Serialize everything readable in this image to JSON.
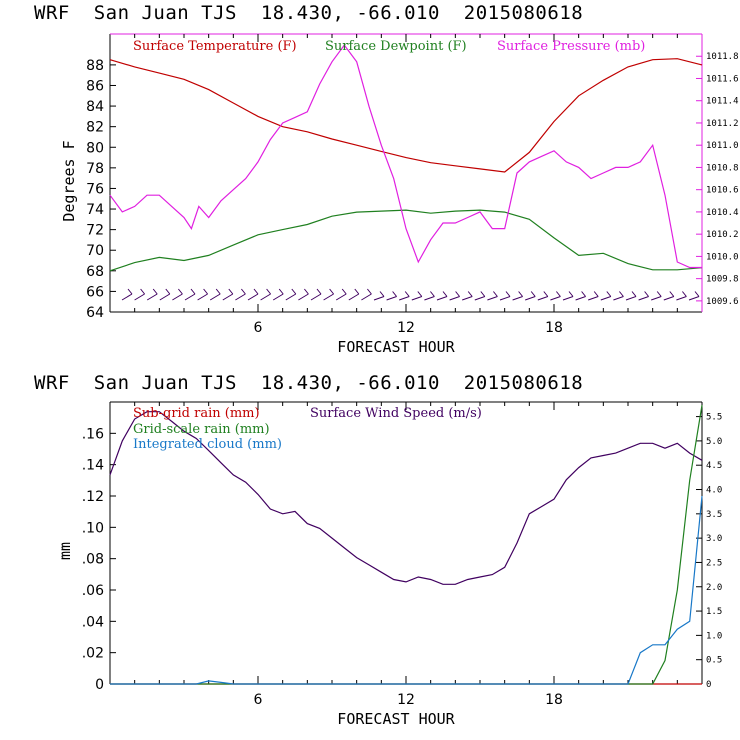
{
  "top_panel": {
    "title": "WRF  San Juan TJS  18.430, -66.010  2015080618",
    "legend": [
      {
        "label": "Surface Temperature (F)",
        "color": "#c00000"
      },
      {
        "label": "Surface Dewpoint (F)",
        "color": "#208020"
      },
      {
        "label": "Surface Pressure (mb)",
        "color": "#e020e0"
      }
    ],
    "left_axis_label": "Degrees F",
    "left_ticks": [
      "64",
      "66",
      "68",
      "70",
      "72",
      "74",
      "76",
      "78",
      "80",
      "82",
      "84",
      "86",
      "88"
    ],
    "right_ticks": [
      "1009.6",
      "1009.8",
      "1010.0",
      "1010.2",
      "1010.4",
      "1010.6",
      "1010.8",
      "1011.0",
      "1011.2",
      "1011.4",
      "1011.6",
      "1011.8"
    ],
    "x_ticks": [
      "6",
      "12",
      "18"
    ],
    "x_label": "FORECAST HOUR"
  },
  "bottom_panel": {
    "title": "WRF  San Juan TJS  18.430, -66.010  2015080618",
    "legend": [
      {
        "label": "Sub-grid rain (mm)",
        "color": "#c00000"
      },
      {
        "label": "Surface Wind Speed (m/s)",
        "color": "#400060"
      },
      {
        "label": "Grid-scale rain (mm)",
        "color": "#208020"
      },
      {
        "label": "Integrated cloud (mm)",
        "color": "#1878c8"
      }
    ],
    "left_axis_label": "mm",
    "left_ticks": [
      "0",
      ".02",
      ".04",
      ".06",
      ".08",
      ".10",
      ".12",
      ".14",
      ".16"
    ],
    "right_ticks": [
      "0",
      "0.5",
      "1.0",
      "1.5",
      "2.0",
      "2.5",
      "3.0",
      "3.5",
      "4.0",
      "4.5",
      "5.0",
      "5.5"
    ],
    "x_ticks": [
      "6",
      "12",
      "18"
    ],
    "x_label": "FORECAST HOUR"
  },
  "chart_data": [
    {
      "type": "line",
      "title": "WRF  San Juan TJS  18.430, -66.010  2015080618",
      "xlabel": "FORECAST HOUR",
      "ylabel": "Degrees F",
      "y2label": "",
      "xlim": [
        0,
        24
      ],
      "ylim": [
        64,
        91
      ],
      "y2lim": [
        1009.5,
        1012.0
      ],
      "series": [
        {
          "name": "Surface Temperature (F)",
          "axis": "left",
          "color": "#c00000",
          "x": [
            0,
            1,
            2,
            3,
            4,
            5,
            6,
            7,
            8,
            9,
            10,
            11,
            12,
            13,
            14,
            15,
            16,
            17,
            18,
            19,
            20,
            21,
            22,
            23,
            24
          ],
          "y": [
            88.5,
            87.8,
            87.2,
            86.6,
            85.6,
            84.3,
            83.0,
            82.0,
            81.5,
            80.8,
            80.2,
            79.6,
            79.0,
            78.5,
            78.2,
            77.9,
            77.6,
            79.5,
            82.5,
            85.0,
            86.5,
            87.8,
            88.5,
            88.6,
            88.0
          ]
        },
        {
          "name": "Surface Dewpoint (F)",
          "axis": "left",
          "color": "#208020",
          "x": [
            0,
            1,
            2,
            3,
            4,
            5,
            6,
            7,
            8,
            9,
            10,
            11,
            12,
            13,
            14,
            15,
            16,
            17,
            18,
            19,
            20,
            21,
            22,
            23,
            24
          ],
          "y": [
            68.0,
            68.8,
            69.3,
            69.0,
            69.5,
            70.5,
            71.5,
            72.0,
            72.5,
            73.3,
            73.7,
            73.8,
            73.9,
            73.6,
            73.8,
            73.9,
            73.7,
            73.0,
            71.2,
            69.5,
            69.7,
            68.7,
            68.1,
            68.1,
            68.3
          ]
        },
        {
          "name": "Surface Pressure (mb)",
          "axis": "right",
          "color": "#e020e0",
          "x": [
            0,
            0.5,
            1,
            1.5,
            2,
            2.5,
            3,
            3.3,
            3.6,
            4,
            4.5,
            5,
            5.5,
            6,
            6.5,
            7,
            7.5,
            8,
            8.5,
            9,
            9.5,
            10,
            10.5,
            11,
            11.5,
            12,
            12.5,
            13,
            13.5,
            14,
            14.5,
            15,
            15.5,
            16,
            16.5,
            17,
            17.5,
            18,
            18.5,
            19,
            19.5,
            20,
            20.5,
            21,
            21.5,
            22,
            22.5,
            23,
            23.5,
            24
          ],
          "y": [
            1010.55,
            1010.4,
            1010.45,
            1010.55,
            1010.55,
            1010.45,
            1010.35,
            1010.25,
            1010.45,
            1010.35,
            1010.5,
            1010.6,
            1010.7,
            1010.85,
            1011.05,
            1011.2,
            1011.25,
            1011.3,
            1011.55,
            1011.75,
            1011.9,
            1011.75,
            1011.35,
            1011.0,
            1010.7,
            1010.25,
            1009.95,
            1010.15,
            1010.3,
            1010.3,
            1010.35,
            1010.4,
            1010.25,
            1010.25,
            1010.75,
            1010.85,
            1010.9,
            1010.95,
            1010.85,
            1010.8,
            1010.7,
            1010.75,
            1010.8,
            1010.8,
            1010.85,
            1011.0,
            1010.55,
            1009.95,
            1009.9,
            1009.9
          ]
        }
      ],
      "annotations": [
        "wind barbs along the bottom of the panel"
      ]
    },
    {
      "type": "line",
      "title": "WRF  San Juan TJS  18.430, -66.010  2015080618",
      "xlabel": "FORECAST HOUR",
      "ylabel": "mm",
      "xlim": [
        0,
        24
      ],
      "ylim": [
        0,
        0.18
      ],
      "y2lim": [
        0,
        5.8
      ],
      "series": [
        {
          "name": "Sub-grid rain (mm)",
          "axis": "left",
          "color": "#c00000",
          "x": [
            0,
            23.5,
            23.8,
            24
          ],
          "y": [
            0,
            0,
            0,
            0
          ]
        },
        {
          "name": "Surface Wind Speed (m/s)",
          "axis": "right",
          "color": "#400060",
          "x": [
            0,
            0.5,
            1,
            1.5,
            2,
            2.5,
            3,
            3.5,
            4,
            4.5,
            5,
            5.5,
            6,
            6.5,
            7,
            7.5,
            8,
            8.5,
            9,
            9.5,
            10,
            10.5,
            11,
            11.5,
            12,
            12.5,
            13,
            13.5,
            14,
            14.5,
            15,
            15.5,
            16,
            16.5,
            17,
            17.5,
            18,
            18.5,
            19,
            19.5,
            20,
            20.5,
            21,
            21.5,
            22,
            22.5,
            23,
            23.5,
            24
          ],
          "y": [
            4.3,
            5.0,
            5.45,
            5.6,
            5.6,
            5.4,
            5.2,
            5.05,
            4.8,
            4.55,
            4.3,
            4.15,
            3.9,
            3.6,
            3.5,
            3.55,
            3.3,
            3.2,
            3.0,
            2.8,
            2.6,
            2.45,
            2.3,
            2.15,
            2.1,
            2.2,
            2.15,
            2.05,
            2.05,
            2.15,
            2.2,
            2.25,
            2.4,
            2.9,
            3.5,
            3.65,
            3.8,
            4.2,
            4.45,
            4.65,
            4.7,
            4.75,
            4.85,
            4.95,
            4.95,
            4.85,
            4.95,
            4.75,
            4.6
          ]
        },
        {
          "name": "Grid-scale rain (mm)",
          "axis": "left",
          "color": "#208020",
          "x": [
            0,
            22.0,
            22.5,
            23.0,
            23.5,
            24
          ],
          "y": [
            0,
            0,
            0.015,
            0.06,
            0.13,
            0.178
          ]
        },
        {
          "name": "Integrated cloud (mm)",
          "axis": "left",
          "color": "#1878c8",
          "x": [
            0,
            3.5,
            4,
            4.5,
            5,
            21.0,
            21.5,
            22.0,
            22.5,
            23.0,
            23.5,
            24
          ],
          "y": [
            0,
            0,
            0.002,
            0.001,
            0,
            0,
            0.02,
            0.025,
            0.025,
            0.035,
            0.04,
            0.12
          ]
        }
      ]
    }
  ]
}
